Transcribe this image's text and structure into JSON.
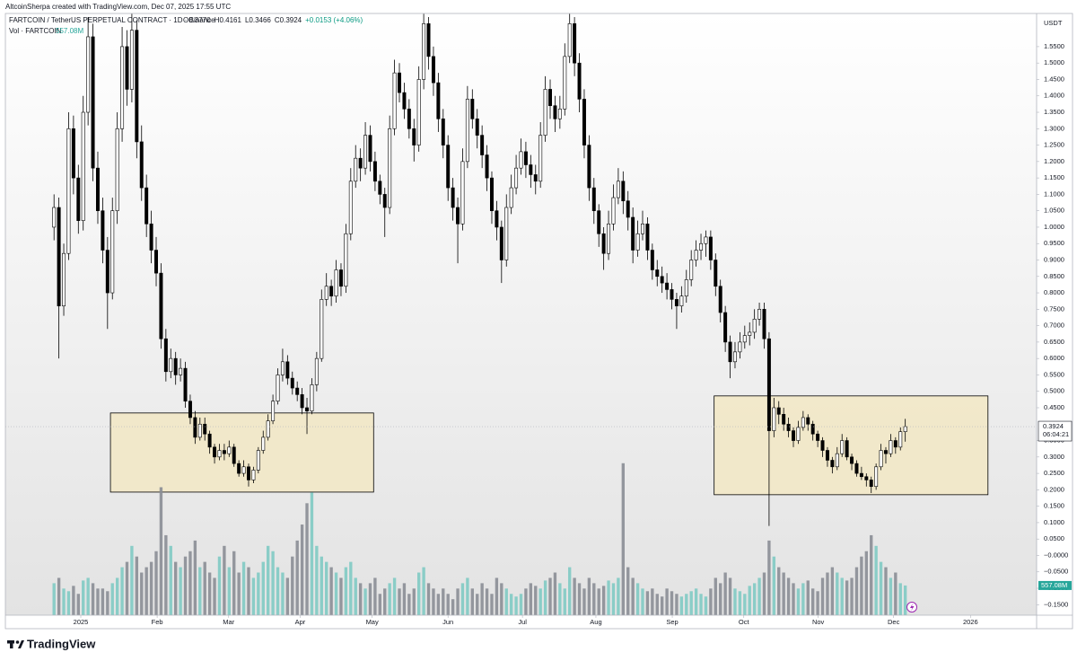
{
  "header": {
    "credit": "AltcoinSherpa created with TradingView.com, Dec 07, 2025 17:55 UTC",
    "symbol": "FARTCOIN / TetherUS PERPETUAL CONTRACT · 1D · Binance",
    "ohlc": [
      "O0.3770",
      "H0.4161",
      "L0.3466",
      "C0.3924",
      "+0.0153 (+4.06%)"
    ],
    "volume_title": "Vol · FARTCOIN",
    "volume_value": "557.08M"
  },
  "chart_data": {
    "type": "candlestick",
    "currency": "USDT",
    "grid": false,
    "xlim": [
      -10,
      202
    ],
    "xticks": [
      {
        "value": 5.5,
        "label": "2025"
      },
      {
        "value": 21.2,
        "label": "Feb"
      },
      {
        "value": 35.9,
        "label": "Mar"
      },
      {
        "value": 50.6,
        "label": "Apr"
      },
      {
        "value": 65.4,
        "label": "May"
      },
      {
        "value": 81.0,
        "label": "Jun"
      },
      {
        "value": 96.3,
        "label": "Jul"
      },
      {
        "value": 111.4,
        "label": "Aug"
      },
      {
        "value": 127.1,
        "label": "Sep"
      },
      {
        "value": 141.8,
        "label": "Oct"
      },
      {
        "value": 157.1,
        "label": "Nov"
      },
      {
        "value": 172.6,
        "label": "Dec"
      },
      {
        "value": 188.4,
        "label": "2026"
      }
    ],
    "ylim": [
      -0.182,
      1.651
    ],
    "yticks": [
      {
        "value": 1.55,
        "label": "1.5500"
      },
      {
        "value": 1.5,
        "label": "1.5000"
      },
      {
        "value": 1.45,
        "label": "1.4500"
      },
      {
        "value": 1.4,
        "label": "1.4000"
      },
      {
        "value": 1.35,
        "label": "1.3500"
      },
      {
        "value": 1.3,
        "label": "1.3000"
      },
      {
        "value": 1.25,
        "label": "1.2500"
      },
      {
        "value": 1.2,
        "label": "1.2000"
      },
      {
        "value": 1.15,
        "label": "1.1500"
      },
      {
        "value": 1.1,
        "label": "1.1000"
      },
      {
        "value": 1.05,
        "label": "1.0500"
      },
      {
        "value": 1.0,
        "label": "1.0000"
      },
      {
        "value": 0.95,
        "label": "0.9500"
      },
      {
        "value": 0.9,
        "label": "0.9000"
      },
      {
        "value": 0.85,
        "label": "0.8500"
      },
      {
        "value": 0.8,
        "label": "0.8000"
      },
      {
        "value": 0.75,
        "label": "0.7500"
      },
      {
        "value": 0.7,
        "label": "0.7000"
      },
      {
        "value": 0.65,
        "label": "0.6500"
      },
      {
        "value": 0.6,
        "label": "0.6000"
      },
      {
        "value": 0.55,
        "label": "0.5500"
      },
      {
        "value": 0.5,
        "label": "0.5000"
      },
      {
        "value": 0.45,
        "label": "0.4500"
      },
      {
        "value": 0.35,
        "label": "0.3500"
      },
      {
        "value": 0.3,
        "label": "0.3000"
      },
      {
        "value": 0.25,
        "label": "0.2500"
      },
      {
        "value": 0.2,
        "label": "0.2000"
      },
      {
        "value": 0.15,
        "label": "0.1500"
      },
      {
        "value": 0.1,
        "label": "0.1000"
      },
      {
        "value": 0.05,
        "label": "0.0500"
      },
      {
        "value": 0,
        "label": "−0.0000"
      },
      {
        "value": -0.05,
        "label": "−0.0500"
      },
      {
        "value": -0.1,
        "label": "−0.1000"
      },
      {
        "value": -0.15,
        "label": "−0.1500"
      }
    ],
    "up_color": "#ffffff",
    "down_color": "#000000",
    "wick_color": "#000000",
    "candles": [
      [
        1.0,
        1.1,
        0.96,
        1.06
      ],
      [
        1.06,
        1.09,
        0.6,
        0.76
      ],
      [
        0.76,
        0.95,
        0.73,
        0.92
      ],
      [
        0.92,
        1.35,
        0.9,
        1.3
      ],
      [
        1.3,
        1.34,
        1.1,
        1.15
      ],
      [
        1.15,
        1.19,
        0.98,
        1.02
      ],
      [
        1.02,
        1.4,
        0.99,
        1.35
      ],
      [
        1.35,
        1.64,
        1.31,
        1.58
      ],
      [
        1.58,
        1.62,
        1.14,
        1.18
      ],
      [
        1.18,
        1.23,
        1.01,
        1.05
      ],
      [
        1.05,
        1.09,
        0.89,
        0.93
      ],
      [
        0.93,
        0.97,
        0.69,
        0.8
      ],
      [
        0.8,
        1.09,
        0.78,
        1.05
      ],
      [
        1.05,
        1.35,
        1.01,
        1.3
      ],
      [
        1.3,
        1.61,
        1.26,
        1.55
      ],
      [
        1.55,
        1.6,
        1.37,
        1.42
      ],
      [
        1.42,
        1.65,
        1.38,
        1.6
      ],
      [
        1.6,
        1.63,
        1.21,
        1.26
      ],
      [
        1.26,
        1.31,
        1.08,
        1.12
      ],
      [
        1.12,
        1.16,
        0.97,
        1.01
      ],
      [
        1.01,
        1.05,
        0.89,
        0.93
      ],
      [
        0.93,
        0.97,
        0.82,
        0.86
      ],
      [
        0.86,
        0.89,
        0.63,
        0.66
      ],
      [
        0.66,
        0.69,
        0.53,
        0.56
      ],
      [
        0.56,
        0.63,
        0.54,
        0.6
      ],
      [
        0.6,
        0.62,
        0.52,
        0.55
      ],
      [
        0.55,
        0.6,
        0.53,
        0.57
      ],
      [
        0.57,
        0.59,
        0.45,
        0.47
      ],
      [
        0.47,
        0.49,
        0.4,
        0.42
      ],
      [
        0.42,
        0.44,
        0.34,
        0.36
      ],
      [
        0.36,
        0.42,
        0.35,
        0.4
      ],
      [
        0.4,
        0.42,
        0.35,
        0.37
      ],
      [
        0.37,
        0.38,
        0.31,
        0.33
      ],
      [
        0.33,
        0.34,
        0.28,
        0.3
      ],
      [
        0.3,
        0.34,
        0.29,
        0.32
      ],
      [
        0.32,
        0.34,
        0.29,
        0.31
      ],
      [
        0.31,
        0.35,
        0.3,
        0.33
      ],
      [
        0.33,
        0.34,
        0.27,
        0.28
      ],
      [
        0.28,
        0.29,
        0.24,
        0.25
      ],
      [
        0.25,
        0.29,
        0.24,
        0.27
      ],
      [
        0.27,
        0.28,
        0.21,
        0.23
      ],
      [
        0.23,
        0.27,
        0.22,
        0.26
      ],
      [
        0.26,
        0.33,
        0.25,
        0.32
      ],
      [
        0.32,
        0.38,
        0.31,
        0.36
      ],
      [
        0.36,
        0.43,
        0.35,
        0.41
      ],
      [
        0.41,
        0.49,
        0.4,
        0.47
      ],
      [
        0.47,
        0.57,
        0.46,
        0.55
      ],
      [
        0.55,
        0.63,
        0.53,
        0.59
      ],
      [
        0.59,
        0.61,
        0.52,
        0.54
      ],
      [
        0.54,
        0.56,
        0.49,
        0.51
      ],
      [
        0.51,
        0.53,
        0.47,
        0.49
      ],
      [
        0.49,
        0.51,
        0.43,
        0.45
      ],
      [
        0.45,
        0.48,
        0.37,
        0.44
      ],
      [
        0.44,
        0.54,
        0.43,
        0.52
      ],
      [
        0.52,
        0.62,
        0.5,
        0.6
      ],
      [
        0.6,
        0.81,
        0.59,
        0.78
      ],
      [
        0.78,
        0.86,
        0.76,
        0.82
      ],
      [
        0.82,
        0.84,
        0.76,
        0.79
      ],
      [
        0.79,
        0.9,
        0.77,
        0.87
      ],
      [
        0.87,
        0.89,
        0.79,
        0.82
      ],
      [
        0.82,
        1.01,
        0.8,
        0.98
      ],
      [
        0.98,
        1.18,
        0.96,
        1.14
      ],
      [
        1.14,
        1.25,
        1.12,
        1.21
      ],
      [
        1.21,
        1.24,
        1.14,
        1.18
      ],
      [
        1.18,
        1.32,
        1.16,
        1.28
      ],
      [
        1.28,
        1.31,
        1.17,
        1.2
      ],
      [
        1.2,
        1.23,
        1.11,
        1.14
      ],
      [
        1.14,
        1.16,
        1.07,
        1.1
      ],
      [
        1.1,
        1.12,
        0.97,
        1.06
      ],
      [
        1.06,
        1.34,
        1.04,
        1.3
      ],
      [
        1.3,
        1.51,
        1.28,
        1.47
      ],
      [
        1.47,
        1.5,
        1.38,
        1.41
      ],
      [
        1.41,
        1.44,
        1.33,
        1.36
      ],
      [
        1.36,
        1.39,
        1.27,
        1.3
      ],
      [
        1.3,
        1.33,
        1.2,
        1.25
      ],
      [
        1.25,
        1.49,
        1.23,
        1.45
      ],
      [
        1.45,
        1.65,
        1.42,
        1.62
      ],
      [
        1.62,
        1.64,
        1.48,
        1.52
      ],
      [
        1.52,
        1.55,
        1.4,
        1.44
      ],
      [
        1.44,
        1.47,
        1.29,
        1.33
      ],
      [
        1.33,
        1.36,
        1.21,
        1.25
      ],
      [
        1.25,
        1.28,
        1.08,
        1.12
      ],
      [
        1.12,
        1.15,
        1.02,
        1.06
      ],
      [
        1.06,
        1.09,
        0.89,
        1.01
      ],
      [
        1.01,
        1.24,
        0.99,
        1.2
      ],
      [
        1.2,
        1.43,
        1.18,
        1.39
      ],
      [
        1.39,
        1.42,
        1.3,
        1.33
      ],
      [
        1.33,
        1.36,
        1.24,
        1.28
      ],
      [
        1.28,
        1.31,
        1.18,
        1.22
      ],
      [
        1.22,
        1.25,
        1.11,
        1.15
      ],
      [
        1.15,
        1.17,
        1.01,
        1.05
      ],
      [
        1.05,
        1.08,
        0.96,
        1.0
      ],
      [
        1.0,
        1.02,
        0.83,
        0.9
      ],
      [
        0.9,
        1.1,
        0.88,
        1.06
      ],
      [
        1.06,
        1.16,
        1.04,
        1.12
      ],
      [
        1.12,
        1.22,
        1.1,
        1.18
      ],
      [
        1.18,
        1.27,
        1.16,
        1.23
      ],
      [
        1.23,
        1.26,
        1.15,
        1.19
      ],
      [
        1.19,
        1.22,
        1.12,
        1.16
      ],
      [
        1.16,
        1.19,
        1.1,
        1.14
      ],
      [
        1.14,
        1.32,
        1.12,
        1.28
      ],
      [
        1.28,
        1.46,
        1.26,
        1.42
      ],
      [
        1.42,
        1.45,
        1.33,
        1.37
      ],
      [
        1.37,
        1.4,
        1.29,
        1.33
      ],
      [
        1.33,
        1.4,
        1.3,
        1.36
      ],
      [
        1.36,
        1.56,
        1.34,
        1.52
      ],
      [
        1.52,
        1.65,
        1.5,
        1.62
      ],
      [
        1.62,
        1.64,
        1.46,
        1.5
      ],
      [
        1.5,
        1.53,
        1.35,
        1.39
      ],
      [
        1.39,
        1.42,
        1.21,
        1.25
      ],
      [
        1.25,
        1.28,
        1.08,
        1.12
      ],
      [
        1.12,
        1.15,
        1.01,
        1.05
      ],
      [
        1.05,
        1.07,
        0.94,
        0.98
      ],
      [
        0.98,
        1.0,
        0.87,
        0.92
      ],
      [
        0.92,
        1.05,
        0.9,
        1.01
      ],
      [
        1.01,
        1.13,
        0.99,
        1.09
      ],
      [
        1.09,
        1.18,
        1.07,
        1.14
      ],
      [
        1.14,
        1.17,
        1.04,
        1.08
      ],
      [
        1.08,
        1.11,
        0.99,
        1.03
      ],
      [
        1.03,
        1.06,
        0.89,
        0.93
      ],
      [
        0.93,
        1.02,
        0.91,
        0.98
      ],
      [
        0.98,
        1.05,
        0.96,
        1.01
      ],
      [
        1.01,
        1.03,
        0.9,
        0.93
      ],
      [
        0.93,
        0.95,
        0.84,
        0.87
      ],
      [
        0.87,
        0.9,
        0.82,
        0.85
      ],
      [
        0.85,
        0.88,
        0.8,
        0.83
      ],
      [
        0.83,
        0.86,
        0.78,
        0.81
      ],
      [
        0.81,
        0.83,
        0.75,
        0.78
      ],
      [
        0.78,
        0.8,
        0.69,
        0.76
      ],
      [
        0.76,
        0.82,
        0.74,
        0.79
      ],
      [
        0.79,
        0.87,
        0.77,
        0.84
      ],
      [
        0.84,
        0.93,
        0.82,
        0.9
      ],
      [
        0.9,
        0.96,
        0.88,
        0.93
      ],
      [
        0.93,
        0.98,
        0.9,
        0.95
      ],
      [
        0.95,
        0.99,
        0.91,
        0.97
      ],
      [
        0.97,
        0.99,
        0.87,
        0.9
      ],
      [
        0.9,
        0.92,
        0.79,
        0.82
      ],
      [
        0.82,
        0.84,
        0.71,
        0.74
      ],
      [
        0.74,
        0.76,
        0.62,
        0.65
      ],
      [
        0.65,
        0.67,
        0.54,
        0.59
      ],
      [
        0.59,
        0.65,
        0.57,
        0.62
      ],
      [
        0.62,
        0.68,
        0.6,
        0.65
      ],
      [
        0.65,
        0.7,
        0.63,
        0.67
      ],
      [
        0.67,
        0.71,
        0.64,
        0.68
      ],
      [
        0.68,
        0.75,
        0.66,
        0.72
      ],
      [
        0.72,
        0.77,
        0.7,
        0.75
      ],
      [
        0.75,
        0.77,
        0.63,
        0.66
      ],
      [
        0.66,
        0.68,
        0.09,
        0.38
      ],
      [
        0.38,
        0.48,
        0.36,
        0.45
      ],
      [
        0.45,
        0.47,
        0.4,
        0.43
      ],
      [
        0.43,
        0.45,
        0.38,
        0.4
      ],
      [
        0.4,
        0.42,
        0.36,
        0.38
      ],
      [
        0.38,
        0.39,
        0.33,
        0.35
      ],
      [
        0.35,
        0.41,
        0.34,
        0.39
      ],
      [
        0.39,
        0.44,
        0.38,
        0.42
      ],
      [
        0.42,
        0.43,
        0.38,
        0.4
      ],
      [
        0.4,
        0.41,
        0.35,
        0.37
      ],
      [
        0.37,
        0.38,
        0.33,
        0.35
      ],
      [
        0.35,
        0.36,
        0.3,
        0.32
      ],
      [
        0.32,
        0.33,
        0.27,
        0.29
      ],
      [
        0.29,
        0.3,
        0.25,
        0.27
      ],
      [
        0.27,
        0.33,
        0.26,
        0.31
      ],
      [
        0.31,
        0.37,
        0.3,
        0.35
      ],
      [
        0.35,
        0.36,
        0.29,
        0.3
      ],
      [
        0.3,
        0.31,
        0.26,
        0.28
      ],
      [
        0.28,
        0.29,
        0.24,
        0.25
      ],
      [
        0.25,
        0.27,
        0.23,
        0.24
      ],
      [
        0.24,
        0.25,
        0.21,
        0.23
      ],
      [
        0.23,
        0.24,
        0.19,
        0.21
      ],
      [
        0.21,
        0.28,
        0.2,
        0.27
      ],
      [
        0.27,
        0.34,
        0.26,
        0.32
      ],
      [
        0.32,
        0.33,
        0.28,
        0.31
      ],
      [
        0.31,
        0.37,
        0.3,
        0.35
      ],
      [
        0.35,
        0.36,
        0.31,
        0.33
      ],
      [
        0.33,
        0.39,
        0.32,
        0.377
      ],
      [
        0.377,
        0.4161,
        0.3466,
        0.3924
      ]
    ],
    "volume": [
      600,
      700,
      500,
      450,
      550,
      400,
      650,
      700,
      600,
      500,
      500,
      450,
      600,
      700,
      900,
      1000,
      1300,
      1100,
      800,
      900,
      1000,
      1200,
      2400,
      1500,
      1300,
      1000,
      900,
      1100,
      1200,
      1400,
      900,
      1000,
      800,
      700,
      1100,
      1300,
      900,
      1200,
      800,
      1000,
      900,
      700,
      800,
      1000,
      1300,
      1200,
      900,
      800,
      700,
      1100,
      1400,
      1700,
      2100,
      2300,
      1300,
      1100,
      1000,
      900,
      800,
      700,
      900,
      1000,
      700,
      600,
      500,
      600,
      700,
      400,
      500,
      600,
      700,
      500,
      600,
      400,
      500,
      800,
      900,
      600,
      500,
      400,
      500,
      400,
      300,
      500,
      600,
      700,
      500,
      400,
      600,
      500,
      400,
      700,
      600,
      500,
      400,
      350,
      400,
      500,
      600,
      550,
      500,
      650,
      700,
      800,
      600,
      500,
      900,
      700,
      600,
      500,
      700,
      600,
      500,
      550,
      650,
      600,
      700,
      2850,
      900,
      700,
      600,
      500,
      450,
      500,
      400,
      350,
      500,
      450,
      400,
      350,
      400,
      450,
      500,
      400,
      350,
      500,
      700,
      600,
      800,
      700,
      500,
      450,
      400,
      550,
      600,
      700,
      800,
      1400,
      1100,
      900,
      800,
      700,
      600,
      500,
      600,
      650,
      500,
      450,
      700,
      800,
      900,
      800,
      700,
      650,
      700,
      900,
      1100,
      1200,
      1500,
      1300,
      1000,
      900,
      700,
      800,
      600,
      557.08
    ],
    "volume_lim": [
      0,
      3200
    ],
    "volume_up_color": "#7fcac3",
    "volume_down_color": "#8a8d95",
    "last_price_label": "0.3924",
    "countdown": "06:04:21",
    "last_volume_label": "557.08M",
    "boxes": [
      {
        "x": [
          11.6,
          65.7
        ],
        "y": [
          0.193,
          0.434
        ]
      },
      {
        "x": [
          135.7,
          192
        ],
        "y": [
          0.185,
          0.486
        ]
      }
    ],
    "box_color": "#f2e8c4"
  },
  "footer": {
    "brand": "TradingView"
  }
}
